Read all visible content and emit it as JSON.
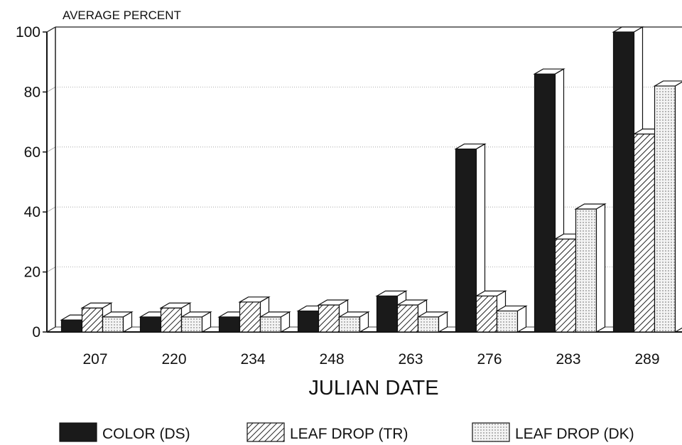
{
  "chart_data": {
    "type": "bar",
    "title": "",
    "ylabel": "AVERAGE PERCENT",
    "xlabel": "JULIAN DATE",
    "ylim": [
      0,
      100
    ],
    "yticks": [
      0,
      20,
      40,
      60,
      80,
      100
    ],
    "grid": true,
    "legend_position": "bottom",
    "categories": [
      "207",
      "220",
      "234",
      "248",
      "263",
      "276",
      "283",
      "289"
    ],
    "series": [
      {
        "name": "COLOR (DS)",
        "fill": "solid",
        "color": "#1a1a1a",
        "values": [
          4,
          5,
          5,
          7,
          12,
          61,
          86,
          100
        ]
      },
      {
        "name": "LEAF DROP (TR)",
        "fill": "hatched",
        "color": "#555555",
        "values": [
          8,
          8,
          10,
          9,
          9,
          12,
          31,
          66
        ]
      },
      {
        "name": "LEAF DROP (DK)",
        "fill": "dotted",
        "color": "#bbbbbb",
        "values": [
          5,
          5,
          5,
          5,
          5,
          7,
          41,
          82
        ]
      }
    ]
  }
}
